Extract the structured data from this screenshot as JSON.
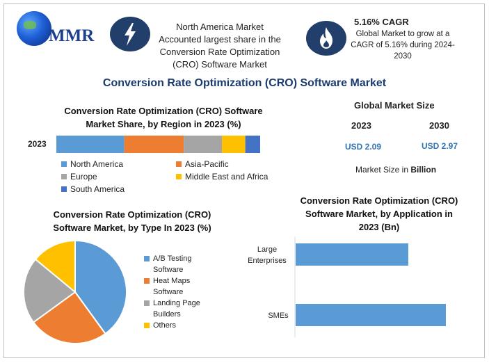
{
  "logo": {
    "text": "MMR"
  },
  "header": {
    "info_lines": [
      "North America Market",
      "Accounted largest share in the",
      "Conversion Rate Optimization",
      "(CRO) Software Market"
    ],
    "cagr_title": "5.16% CAGR",
    "cagr_lines": [
      "Global Market to grow at a",
      "CAGR of 5.16% during 2024-",
      "2030"
    ]
  },
  "title": "Conversion Rate Optimization (CRO) Software Market",
  "market_size": {
    "title": "Global Market Size",
    "years": [
      "2023",
      "2030"
    ],
    "values": [
      "USD 2.09",
      "USD 2.97"
    ],
    "note_prefix": "Market Size in ",
    "note_bold": "Billion"
  },
  "icons": {
    "left": "lightning-bolt-icon",
    "right": "flame-icon"
  },
  "colors": {
    "blue": "#5b9bd5",
    "orange": "#ed7d31",
    "gray": "#a5a5a5",
    "yellow": "#ffc000",
    "darkblue": "#4472c4",
    "navy": "#223f6b"
  },
  "chart_data": [
    {
      "type": "bar",
      "orientation": "horizontal-stacked",
      "title_lines": [
        "Conversion Rate Optimization (CRO) Software",
        "Market Share, by Region in 2023 (%)"
      ],
      "categories": [
        "2023"
      ],
      "series": [
        {
          "name": "North America",
          "values": [
            32
          ],
          "color": "#5b9bd5"
        },
        {
          "name": "Asia-Pacific",
          "values": [
            28
          ],
          "color": "#ed7d31"
        },
        {
          "name": "Europe",
          "values": [
            18
          ],
          "color": "#a5a5a5"
        },
        {
          "name": "Middle East and Africa",
          "values": [
            11
          ],
          "color": "#ffc000"
        },
        {
          "name": "South America",
          "values": [
            7
          ],
          "color": "#4472c4"
        }
      ]
    },
    {
      "type": "pie",
      "title_lines": [
        "Conversion Rate Optimization (CRO)",
        "Software Market, by Type In 2023 (%)"
      ],
      "slices": [
        {
          "name": "A/B Testing Software",
          "value": 40,
          "color": "#5b9bd5"
        },
        {
          "name": "Heat Maps Software",
          "value": 25,
          "color": "#ed7d31"
        },
        {
          "name": "Landing Page Builders",
          "value": 21,
          "color": "#a5a5a5"
        },
        {
          "name": "Others",
          "value": 14,
          "color": "#ffc000"
        }
      ],
      "legend_lines": [
        [
          "A/B Testing",
          "Software"
        ],
        [
          "Heat Maps",
          "Software"
        ],
        [
          "Landing Page",
          "Builders"
        ],
        [
          "Others"
        ]
      ]
    },
    {
      "type": "bar",
      "orientation": "horizontal",
      "title_lines": [
        "Conversion Rate Optimization (CRO)",
        "Software Market, by Application in",
        "2023 (Bn)"
      ],
      "categories": [
        "Large Enterprises",
        "SMEs"
      ],
      "category_lines": [
        [
          "Large",
          "Enterprises"
        ],
        [
          "SMEs"
        ]
      ],
      "values": [
        0.75,
        1.0
      ],
      "color": "#5b9bd5"
    }
  ]
}
